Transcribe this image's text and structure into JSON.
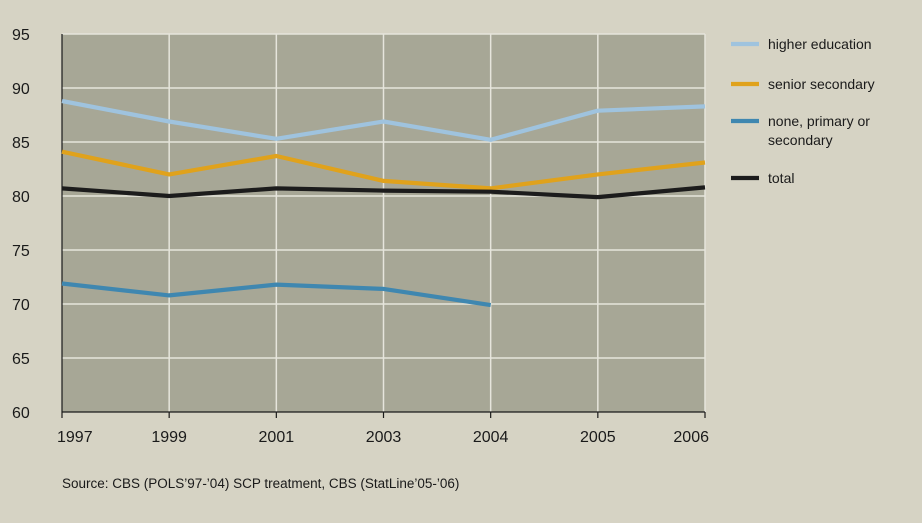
{
  "chart_data": {
    "type": "line",
    "categories": [
      "1997",
      "1999",
      "2001",
      "2003",
      "2004",
      "2005",
      "2006"
    ],
    "ylim": [
      60,
      95
    ],
    "yticks": [
      60,
      65,
      70,
      75,
      80,
      85,
      90,
      95
    ],
    "grid": true,
    "legend_position": "right",
    "series": [
      {
        "name": "higher education",
        "color": "#9fc3de",
        "values": [
          88.8,
          86.9,
          85.3,
          86.9,
          85.2,
          87.9,
          88.3
        ]
      },
      {
        "name": "senior secondary",
        "color": "#e0a21c",
        "values": [
          84.1,
          82.0,
          83.7,
          81.4,
          80.7,
          82.0,
          83.1
        ]
      },
      {
        "name": "none, primary or secondary",
        "name_lines": [
          "none, primary or",
          "secondary"
        ],
        "color": "#3f87b0",
        "values": [
          71.9,
          70.8,
          71.8,
          71.4,
          69.9,
          null,
          null
        ]
      },
      {
        "name": "total",
        "color": "#1c1c1c",
        "values": [
          80.7,
          80.0,
          80.7,
          80.5,
          80.4,
          79.9,
          80.8
        ]
      }
    ]
  },
  "source": "Source: CBS (POLS’97-’04) SCP treatment, CBS (StatLine’05-’06)",
  "colors": {
    "page_background": "#d6d3c4",
    "plot_background": "#a7a796",
    "grid": "#e6e5dc"
  }
}
